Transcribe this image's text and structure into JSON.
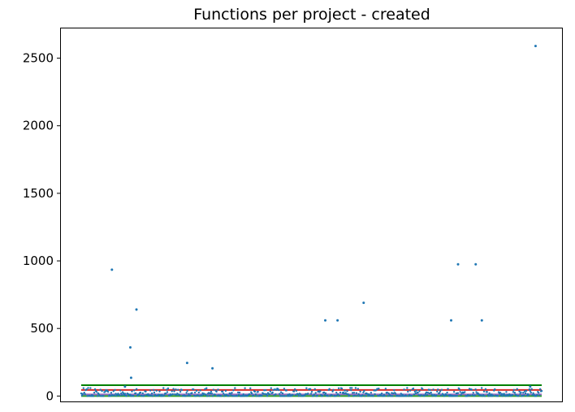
{
  "chart_data": {
    "type": "scatter",
    "title": "Functions per project - created",
    "xlabel": "",
    "ylabel": "",
    "xlim": [
      0,
      600
    ],
    "ylim": [
      -40,
      2720
    ],
    "y_ticks": [
      0,
      500,
      1000,
      1500,
      2000,
      2500
    ],
    "x_ticks": [],
    "grid": false,
    "legend": "none",
    "colors": {
      "points": "#1f77b4",
      "line_upper": "#008000",
      "line_mid": "#d62728",
      "line_lower": "#9467bd",
      "line_base": "#2ca02c"
    },
    "reference_lines": [
      {
        "y": 80,
        "color": "#008000"
      },
      {
        "y": 45,
        "color": "#d62728"
      },
      {
        "y": 12,
        "color": "#9467bd"
      },
      {
        "y": 0,
        "color": "#2ca02c"
      }
    ],
    "outliers": [
      {
        "x": 40,
        "y": 935
      },
      {
        "x": 57,
        "y": 70
      },
      {
        "x": 64,
        "y": 360
      },
      {
        "x": 65,
        "y": 135
      },
      {
        "x": 72,
        "y": 640
      },
      {
        "x": 138,
        "y": 245
      },
      {
        "x": 171,
        "y": 205
      },
      {
        "x": 318,
        "y": 560
      },
      {
        "x": 334,
        "y": 560
      },
      {
        "x": 368,
        "y": 690
      },
      {
        "x": 482,
        "y": 560
      },
      {
        "x": 491,
        "y": 975
      },
      {
        "x": 514,
        "y": 975
      },
      {
        "x": 522,
        "y": 560
      },
      {
        "x": 585,
        "y": 70
      },
      {
        "x": 592,
        "y": 2590
      }
    ],
    "cluster": {
      "count": 600,
      "y_range": [
        0,
        60
      ]
    }
  }
}
